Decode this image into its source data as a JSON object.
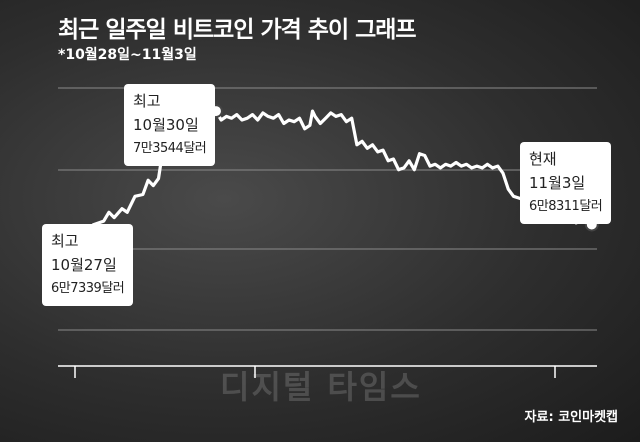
{
  "header": {
    "title": "최근 일주일 비트코인 가격 추이 그래프",
    "subtitle": "*10월28일~11월3일"
  },
  "chart_data": {
    "type": "line",
    "title": "최근 일주일 비트코인 가격 추이 그래프",
    "subtitle": "*10월28일~11월3일",
    "xlabel": "",
    "ylabel": "",
    "grid": true,
    "ylim": [
      60000,
      76000
    ],
    "series": [
      {
        "name": "",
        "color": "#ffffff",
        "points": [
          [
            0.0,
            67339
          ],
          [
            0.02,
            67500
          ],
          [
            0.035,
            68300
          ],
          [
            0.055,
            68500
          ],
          [
            0.065,
            69000
          ],
          [
            0.075,
            68700
          ],
          [
            0.09,
            69200
          ],
          [
            0.1,
            69000
          ],
          [
            0.115,
            69900
          ],
          [
            0.13,
            70000
          ],
          [
            0.14,
            70800
          ],
          [
            0.15,
            70500
          ],
          [
            0.16,
            70900
          ],
          [
            0.17,
            72800
          ],
          [
            0.18,
            72600
          ],
          [
            0.19,
            72800
          ],
          [
            0.2,
            72700
          ],
          [
            0.21,
            73200
          ],
          [
            0.22,
            73100
          ],
          [
            0.23,
            73400
          ],
          [
            0.24,
            73800
          ],
          [
            0.25,
            73600
          ],
          [
            0.255,
            74600
          ],
          [
            0.262,
            74200
          ],
          [
            0.27,
            74700
          ],
          [
            0.28,
            74200
          ],
          [
            0.29,
            74400
          ],
          [
            0.3,
            74300
          ],
          [
            0.31,
            74500
          ],
          [
            0.32,
            74200
          ],
          [
            0.33,
            74300
          ],
          [
            0.34,
            74500
          ],
          [
            0.35,
            74200
          ],
          [
            0.36,
            74600
          ],
          [
            0.37,
            74400
          ],
          [
            0.38,
            74300
          ],
          [
            0.39,
            74500
          ],
          [
            0.4,
            74000
          ],
          [
            0.41,
            74200
          ],
          [
            0.42,
            74100
          ],
          [
            0.43,
            74300
          ],
          [
            0.44,
            73700
          ],
          [
            0.45,
            73900
          ],
          [
            0.455,
            74700
          ],
          [
            0.46,
            74400
          ],
          [
            0.47,
            74000
          ],
          [
            0.48,
            74300
          ],
          [
            0.49,
            74600
          ],
          [
            0.5,
            74400
          ],
          [
            0.51,
            74500
          ],
          [
            0.52,
            74100
          ],
          [
            0.53,
            74300
          ],
          [
            0.54,
            72800
          ],
          [
            0.55,
            73000
          ],
          [
            0.56,
            72600
          ],
          [
            0.57,
            72800
          ],
          [
            0.58,
            72400
          ],
          [
            0.59,
            72500
          ],
          [
            0.6,
            71900
          ],
          [
            0.61,
            72000
          ],
          [
            0.62,
            71400
          ],
          [
            0.63,
            71500
          ],
          [
            0.64,
            71900
          ],
          [
            0.65,
            71400
          ],
          [
            0.66,
            72300
          ],
          [
            0.67,
            72200
          ],
          [
            0.68,
            71600
          ],
          [
            0.69,
            71700
          ],
          [
            0.7,
            71500
          ],
          [
            0.71,
            71700
          ],
          [
            0.72,
            71600
          ],
          [
            0.73,
            71800
          ],
          [
            0.74,
            71600
          ],
          [
            0.75,
            71700
          ],
          [
            0.76,
            71500
          ],
          [
            0.77,
            71600
          ],
          [
            0.78,
            71500
          ],
          [
            0.79,
            71700
          ],
          [
            0.8,
            71500
          ],
          [
            0.81,
            71600
          ],
          [
            0.82,
            71200
          ],
          [
            0.83,
            70300
          ],
          [
            0.84,
            69900
          ],
          [
            0.85,
            69800
          ],
          [
            0.86,
            69700
          ],
          [
            0.87,
            70200
          ],
          [
            0.88,
            69900
          ],
          [
            0.89,
            70100
          ],
          [
            0.9,
            69800
          ],
          [
            0.91,
            70000
          ],
          [
            0.92,
            69900
          ],
          [
            0.93,
            69700
          ],
          [
            0.94,
            68900
          ],
          [
            0.95,
            68600
          ],
          [
            0.96,
            68400
          ],
          [
            0.97,
            68500
          ],
          [
            0.98,
            68600
          ],
          [
            0.99,
            68311
          ]
        ]
      }
    ],
    "annotations": [
      {
        "lines": [
          "최고",
          "10월27일",
          "6만7339달러"
        ]
      },
      {
        "lines": [
          "최고",
          "10월30일",
          "7만3544달러"
        ]
      },
      {
        "lines": [
          "현재",
          "11월3일",
          "6만8311달러"
        ]
      }
    ]
  },
  "watermark": "디지털 타임스",
  "source": "자료: 코인마켓캡"
}
